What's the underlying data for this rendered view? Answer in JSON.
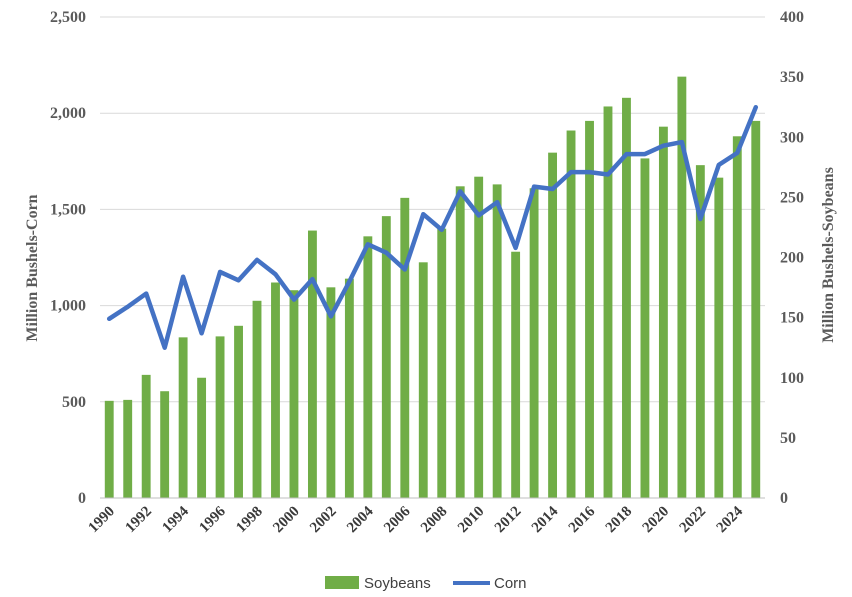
{
  "chart_data": {
    "type": "bar+line",
    "title": "",
    "x": [
      1990,
      1991,
      1992,
      1993,
      1994,
      1995,
      1996,
      1997,
      1998,
      1999,
      2000,
      2001,
      2002,
      2003,
      2004,
      2005,
      2006,
      2007,
      2008,
      2009,
      2010,
      2011,
      2012,
      2013,
      2014,
      2015,
      2016,
      2017,
      2018,
      2019,
      2020,
      2021,
      2022,
      2023,
      2024,
      2025
    ],
    "x_tick_labels": [
      "1990",
      "1992",
      "1994",
      "1996",
      "1998",
      "2000",
      "2002",
      "2004",
      "2006",
      "2008",
      "2010",
      "2012",
      "2014",
      "2016",
      "2018",
      "2020",
      "2022",
      "2024"
    ],
    "y_left": {
      "label": "Million Bushels-Corn",
      "lim": [
        0,
        2500
      ],
      "ticks": [
        0,
        500,
        1000,
        1500,
        2000,
        2500
      ],
      "tick_labels": [
        "0",
        "500",
        "1,000",
        "1,500",
        "2,000",
        "2,500"
      ]
    },
    "y_right": {
      "label": "Million Bushels-Soybeans",
      "lim": [
        0,
        400
      ],
      "ticks": [
        0,
        50,
        100,
        150,
        200,
        250,
        300,
        350,
        400
      ],
      "tick_labels": [
        "0",
        "50",
        "100",
        "150",
        "200",
        "250",
        "300",
        "350",
        "400"
      ]
    },
    "grid": true,
    "legend_position": "bottom",
    "series": [
      {
        "name": "Soybeans",
        "type": "bar",
        "axis": "left",
        "color": "#70ad47",
        "values": [
          505,
          510,
          640,
          555,
          835,
          625,
          840,
          895,
          1025,
          1120,
          1080,
          1390,
          1095,
          1140,
          1360,
          1465,
          1560,
          1225,
          1400,
          1620,
          1670,
          1630,
          1280,
          1610,
          1795,
          1910,
          1960,
          2035,
          2080,
          1765,
          1930,
          2190,
          1730,
          1665,
          1880,
          1960
        ]
      },
      {
        "name": "Corn",
        "type": "line",
        "axis": "right",
        "color": "#4472c4",
        "values": [
          149,
          159,
          170,
          125,
          184,
          137,
          188,
          181,
          198,
          186,
          165,
          182,
          151,
          180,
          211,
          204,
          190,
          236,
          223,
          255,
          235,
          246,
          208,
          259,
          257,
          271,
          271,
          269,
          286,
          286,
          293,
          296,
          232,
          277,
          287,
          325
        ]
      }
    ]
  }
}
